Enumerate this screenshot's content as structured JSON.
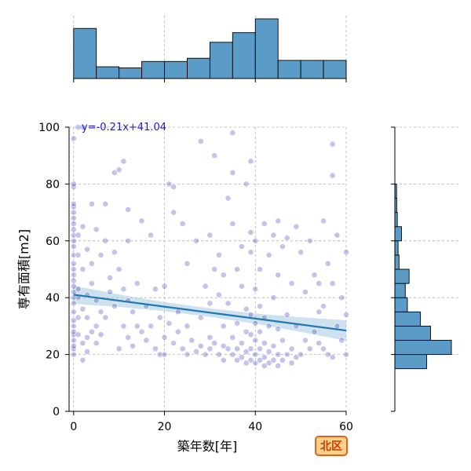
{
  "chart_data": {
    "type": "scatter",
    "title": "",
    "xlabel": "築年数[年]",
    "ylabel": "専有面積[m2]",
    "xlim": [
      -1,
      60
    ],
    "ylim": [
      0,
      100
    ],
    "xticks": [
      0,
      20,
      40,
      60
    ],
    "yticks": [
      0,
      20,
      40,
      60,
      80,
      100
    ],
    "grid": true,
    "regression": {
      "equation_label": "y=-0.21x+41.04",
      "slope": -0.21,
      "intercept": 41.04,
      "color": "#1f77b4",
      "band_color": "#a6c8e0"
    },
    "point_color": "#2a2ab8",
    "top_histogram": {
      "bin_edges": [
        0,
        5,
        10,
        15,
        20,
        25,
        30,
        35,
        40,
        45,
        50,
        55,
        60
      ],
      "counts": [
        47,
        11,
        10,
        16,
        16,
        19,
        34,
        43,
        56,
        17,
        17,
        17,
        8
      ],
      "color": "#5b9bc8"
    },
    "right_histogram": {
      "bin_edges": [
        15,
        20,
        25,
        30,
        35,
        40,
        45,
        50,
        55,
        60,
        65,
        70,
        75,
        80
      ],
      "counts": [
        168,
        298,
        188,
        135,
        66,
        55,
        75,
        22,
        17,
        35,
        13,
        10,
        9
      ],
      "color": "#5b9bc8"
    },
    "points": [
      [
        0,
        20
      ],
      [
        0,
        22
      ],
      [
        0,
        23
      ],
      [
        0,
        25
      ],
      [
        0,
        27
      ],
      [
        0,
        28
      ],
      [
        0,
        30
      ],
      [
        0,
        32
      ],
      [
        0,
        35
      ],
      [
        0,
        38
      ],
      [
        0,
        40
      ],
      [
        0,
        42
      ],
      [
        0,
        44
      ],
      [
        0,
        46
      ],
      [
        0,
        48
      ],
      [
        0,
        50
      ],
      [
        0,
        52
      ],
      [
        0,
        55
      ],
      [
        0,
        58
      ],
      [
        0,
        60
      ],
      [
        0,
        62
      ],
      [
        0,
        64
      ],
      [
        0,
        66
      ],
      [
        0,
        68
      ],
      [
        0,
        70
      ],
      [
        0,
        72
      ],
      [
        0,
        73
      ],
      [
        0,
        79
      ],
      [
        0,
        80
      ],
      [
        0,
        96
      ],
      [
        1,
        100
      ],
      [
        2,
        100
      ],
      [
        1,
        27
      ],
      [
        1,
        33
      ],
      [
        1,
        40
      ],
      [
        1,
        43
      ],
      [
        1,
        55
      ],
      [
        1,
        62
      ],
      [
        2,
        18
      ],
      [
        2,
        24
      ],
      [
        2,
        36
      ],
      [
        2,
        50
      ],
      [
        2,
        65
      ],
      [
        3,
        21
      ],
      [
        3,
        26
      ],
      [
        3,
        33
      ],
      [
        3,
        41
      ],
      [
        3,
        57
      ],
      [
        4,
        28
      ],
      [
        4,
        45
      ],
      [
        4,
        52
      ],
      [
        4,
        73
      ],
      [
        5,
        24
      ],
      [
        5,
        30
      ],
      [
        5,
        39
      ],
      [
        5,
        64
      ],
      [
        6,
        27
      ],
      [
        6,
        35
      ],
      [
        6,
        55
      ],
      [
        7,
        33
      ],
      [
        7,
        60
      ],
      [
        7,
        73
      ],
      [
        8,
        42
      ],
      [
        8,
        47
      ],
      [
        9,
        84
      ],
      [
        9,
        56
      ],
      [
        9,
        37
      ],
      [
        10,
        85
      ],
      [
        10,
        50
      ],
      [
        10,
        22
      ],
      [
        11,
        88
      ],
      [
        11,
        43
      ],
      [
        11,
        30
      ],
      [
        12,
        71
      ],
      [
        12,
        60
      ],
      [
        12,
        39
      ],
      [
        12,
        26
      ],
      [
        13,
        35
      ],
      [
        13,
        23
      ],
      [
        14,
        45
      ],
      [
        14,
        30
      ],
      [
        15,
        28
      ],
      [
        15,
        67
      ],
      [
        16,
        25
      ],
      [
        16,
        37
      ],
      [
        17,
        62
      ],
      [
        17,
        30
      ],
      [
        18,
        22
      ],
      [
        18,
        43
      ],
      [
        19,
        20
      ],
      [
        19,
        33
      ],
      [
        20,
        20
      ],
      [
        20,
        26
      ],
      [
        20,
        44
      ],
      [
        21,
        80
      ],
      [
        21,
        31
      ],
      [
        22,
        79
      ],
      [
        22,
        24
      ],
      [
        22,
        70
      ],
      [
        23,
        28
      ],
      [
        23,
        35
      ],
      [
        24,
        66
      ],
      [
        24,
        22
      ],
      [
        25,
        20
      ],
      [
        25,
        30
      ],
      [
        25,
        52
      ],
      [
        26,
        25
      ],
      [
        27,
        21
      ],
      [
        27,
        60
      ],
      [
        28,
        95
      ],
      [
        28,
        23
      ],
      [
        28,
        33
      ],
      [
        29,
        20
      ],
      [
        29,
        44
      ],
      [
        30,
        22
      ],
      [
        30,
        26
      ],
      [
        30,
        62
      ],
      [
        30,
        38
      ],
      [
        31,
        90
      ],
      [
        31,
        24
      ],
      [
        31,
        50
      ],
      [
        32,
        20
      ],
      [
        32,
        41
      ],
      [
        32,
        55
      ],
      [
        33,
        18
      ],
      [
        33,
        23
      ],
      [
        33,
        30
      ],
      [
        33,
        48
      ],
      [
        34,
        75
      ],
      [
        34,
        22
      ],
      [
        34,
        38
      ],
      [
        35,
        98
      ],
      [
        35,
        20
      ],
      [
        35,
        26
      ],
      [
        35,
        66
      ],
      [
        35,
        84
      ],
      [
        36,
        18
      ],
      [
        36,
        22
      ],
      [
        36,
        31
      ],
      [
        36,
        50
      ],
      [
        37,
        19
      ],
      [
        37,
        24
      ],
      [
        37,
        44
      ],
      [
        37,
        58
      ],
      [
        38,
        17
      ],
      [
        38,
        21
      ],
      [
        38,
        28
      ],
      [
        38,
        36
      ],
      [
        38,
        80
      ],
      [
        39,
        88
      ],
      [
        39,
        18
      ],
      [
        39,
        22
      ],
      [
        39,
        27
      ],
      [
        39,
        34
      ],
      [
        39,
        56
      ],
      [
        39,
        63
      ],
      [
        40,
        17
      ],
      [
        40,
        20
      ],
      [
        40,
        25
      ],
      [
        40,
        31
      ],
      [
        40,
        43
      ],
      [
        40,
        60
      ],
      [
        41,
        18
      ],
      [
        41,
        22
      ],
      [
        41,
        28
      ],
      [
        41,
        37
      ],
      [
        41,
        50
      ],
      [
        42,
        16
      ],
      [
        42,
        19
      ],
      [
        42,
        24
      ],
      [
        42,
        33
      ],
      [
        42,
        66
      ],
      [
        43,
        17
      ],
      [
        43,
        21
      ],
      [
        43,
        30
      ],
      [
        43,
        55
      ],
      [
        44,
        18
      ],
      [
        44,
        23
      ],
      [
        44,
        40
      ],
      [
        44,
        62
      ],
      [
        45,
        16
      ],
      [
        45,
        20
      ],
      [
        45,
        29
      ],
      [
        45,
        48
      ],
      [
        45,
        67
      ],
      [
        46,
        18
      ],
      [
        46,
        25
      ],
      [
        46,
        58
      ],
      [
        47,
        20
      ],
      [
        47,
        34
      ],
      [
        47,
        61
      ],
      [
        48,
        17
      ],
      [
        48,
        22
      ],
      [
        48,
        45
      ],
      [
        49,
        19
      ],
      [
        49,
        30
      ],
      [
        49,
        65
      ],
      [
        50,
        20
      ],
      [
        50,
        56
      ],
      [
        51,
        25
      ],
      [
        51,
        42
      ],
      [
        52,
        22
      ],
      [
        52,
        60
      ],
      [
        53,
        28
      ],
      [
        53,
        48
      ],
      [
        54,
        24
      ],
      [
        54,
        35
      ],
      [
        54,
        45
      ],
      [
        55,
        67
      ],
      [
        55,
        37
      ],
      [
        55,
        22
      ],
      [
        56,
        20
      ],
      [
        56,
        52
      ],
      [
        57,
        94
      ],
      [
        57,
        83
      ],
      [
        57,
        45
      ],
      [
        57,
        19
      ],
      [
        58,
        30
      ],
      [
        58,
        62
      ],
      [
        59,
        25
      ],
      [
        59,
        40
      ],
      [
        60,
        56
      ],
      [
        60,
        34
      ],
      [
        60,
        20
      ]
    ]
  }
}
